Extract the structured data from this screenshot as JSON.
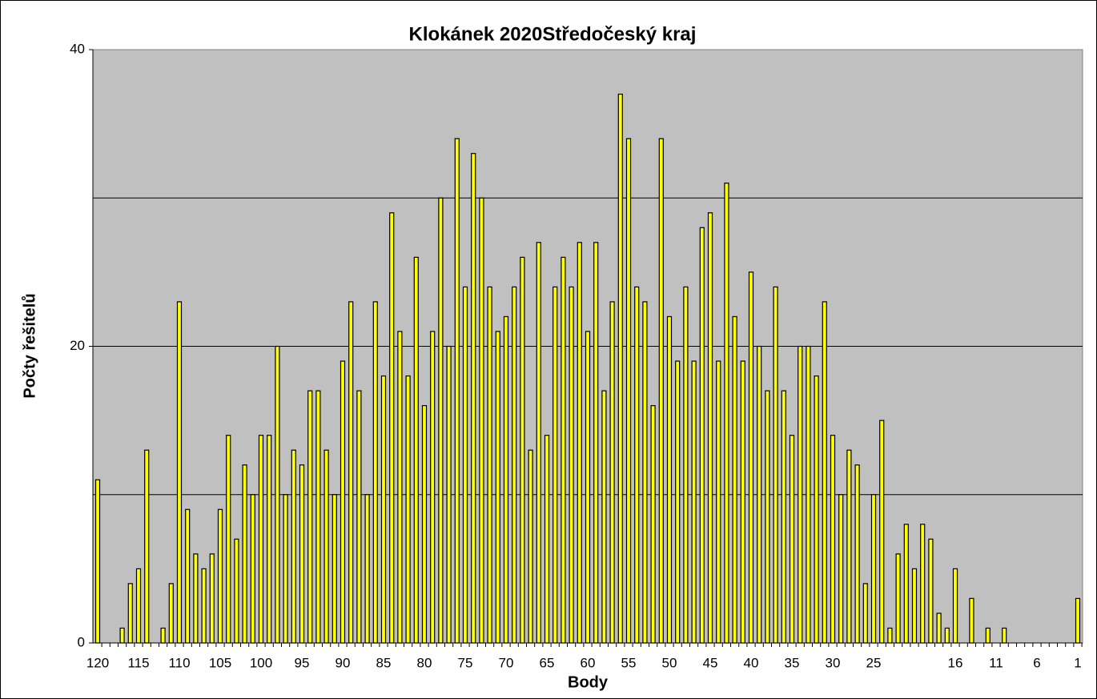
{
  "chart_data": {
    "type": "bar",
    "title": "Klokánek 2020Středočeský kraj",
    "x_label": "Body",
    "y_label": "Počty řešitelů",
    "categories": [
      "120",
      null,
      null,
      null,
      null,
      "115",
      null,
      null,
      null,
      null,
      "110",
      null,
      null,
      null,
      null,
      "105",
      null,
      null,
      null,
      null,
      "100",
      null,
      null,
      null,
      null,
      "95",
      null,
      null,
      null,
      null,
      "90",
      null,
      null,
      null,
      null,
      "85",
      null,
      null,
      null,
      null,
      "80",
      null,
      null,
      null,
      null,
      "75",
      null,
      null,
      null,
      null,
      "70",
      null,
      null,
      null,
      null,
      "65",
      null,
      null,
      null,
      null,
      "60",
      null,
      null,
      null,
      null,
      "55",
      null,
      null,
      null,
      null,
      "50",
      null,
      null,
      null,
      null,
      "45",
      null,
      null,
      null,
      null,
      "40",
      null,
      null,
      null,
      null,
      "35",
      null,
      null,
      null,
      null,
      "30",
      null,
      null,
      null,
      null,
      "25",
      null,
      null,
      null,
      null,
      null,
      null,
      null,
      null,
      null,
      "16",
      null,
      null,
      null,
      null,
      "11",
      null,
      null,
      null,
      null,
      "6",
      null,
      null,
      null,
      null,
      "1"
    ],
    "values": [
      11,
      0,
      0,
      1,
      4,
      5,
      13,
      0,
      1,
      4,
      23,
      9,
      6,
      5,
      6,
      9,
      14,
      7,
      12,
      10,
      14,
      14,
      20,
      10,
      13,
      12,
      17,
      17,
      13,
      10,
      19,
      23,
      17,
      10,
      23,
      18,
      29,
      21,
      18,
      26,
      16,
      21,
      30,
      20,
      34,
      24,
      33,
      30,
      24,
      21,
      22,
      24,
      26,
      13,
      27,
      14,
      24,
      26,
      24,
      27,
      21,
      27,
      17,
      23,
      37,
      34,
      24,
      23,
      16,
      34,
      22,
      19,
      24,
      19,
      28,
      29,
      19,
      31,
      22,
      19,
      25,
      20,
      17,
      24,
      17,
      14,
      20,
      20,
      18,
      23,
      14,
      10,
      13,
      12,
      4,
      10,
      15,
      1,
      6,
      8,
      5,
      8,
      7,
      2,
      1,
      5,
      0,
      3,
      0,
      1,
      0,
      1,
      0,
      0,
      0,
      0,
      0,
      0,
      0,
      0,
      3
    ],
    "color": "#ffff00",
    "ylim": [
      0,
      40
    ],
    "yticks": [
      0,
      20,
      40
    ],
    "ygrid": [
      10,
      20,
      30
    ],
    "plot_background": "#c0c0c0"
  }
}
